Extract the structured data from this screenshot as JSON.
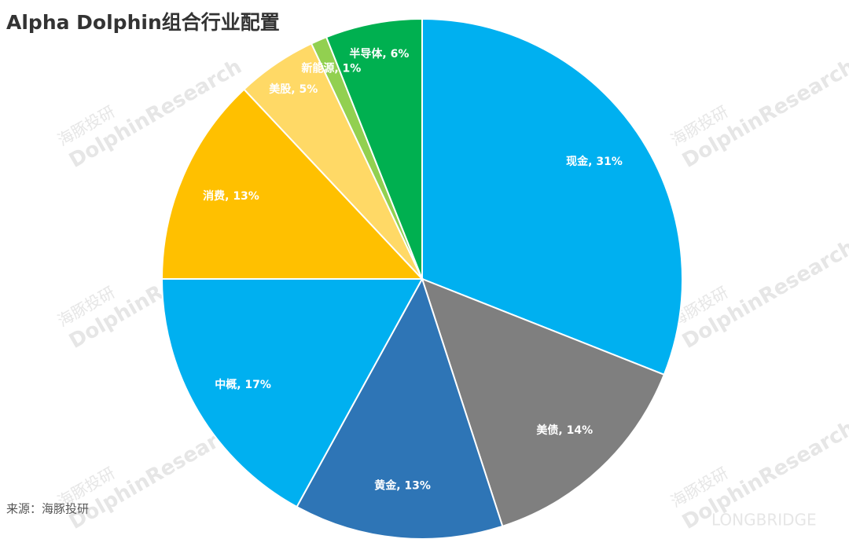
{
  "chart_data": {
    "type": "pie",
    "title": "Alpha Dolphin组合行业配置",
    "source": "来源：海豚投研",
    "watermarks": [
      "海豚投研",
      "DolphinResearch",
      "LONGBRIDGE"
    ],
    "values": [
      31,
      14,
      13,
      17,
      13,
      5,
      1,
      6
    ],
    "value_labels": [
      "现金, 31%",
      "美债, 14%",
      "黄金, 13%",
      "中概, 17%",
      "消费, 13%",
      "美股, 5%",
      "新能源, 1%",
      "半导体, 6%"
    ],
    "colors": [
      "#00b0f0",
      "#7f7f7f",
      "#2e75b6",
      "#00b0f0",
      "#ffc000",
      "#ffd966",
      "#92d050",
      "#00b050"
    ]
  }
}
